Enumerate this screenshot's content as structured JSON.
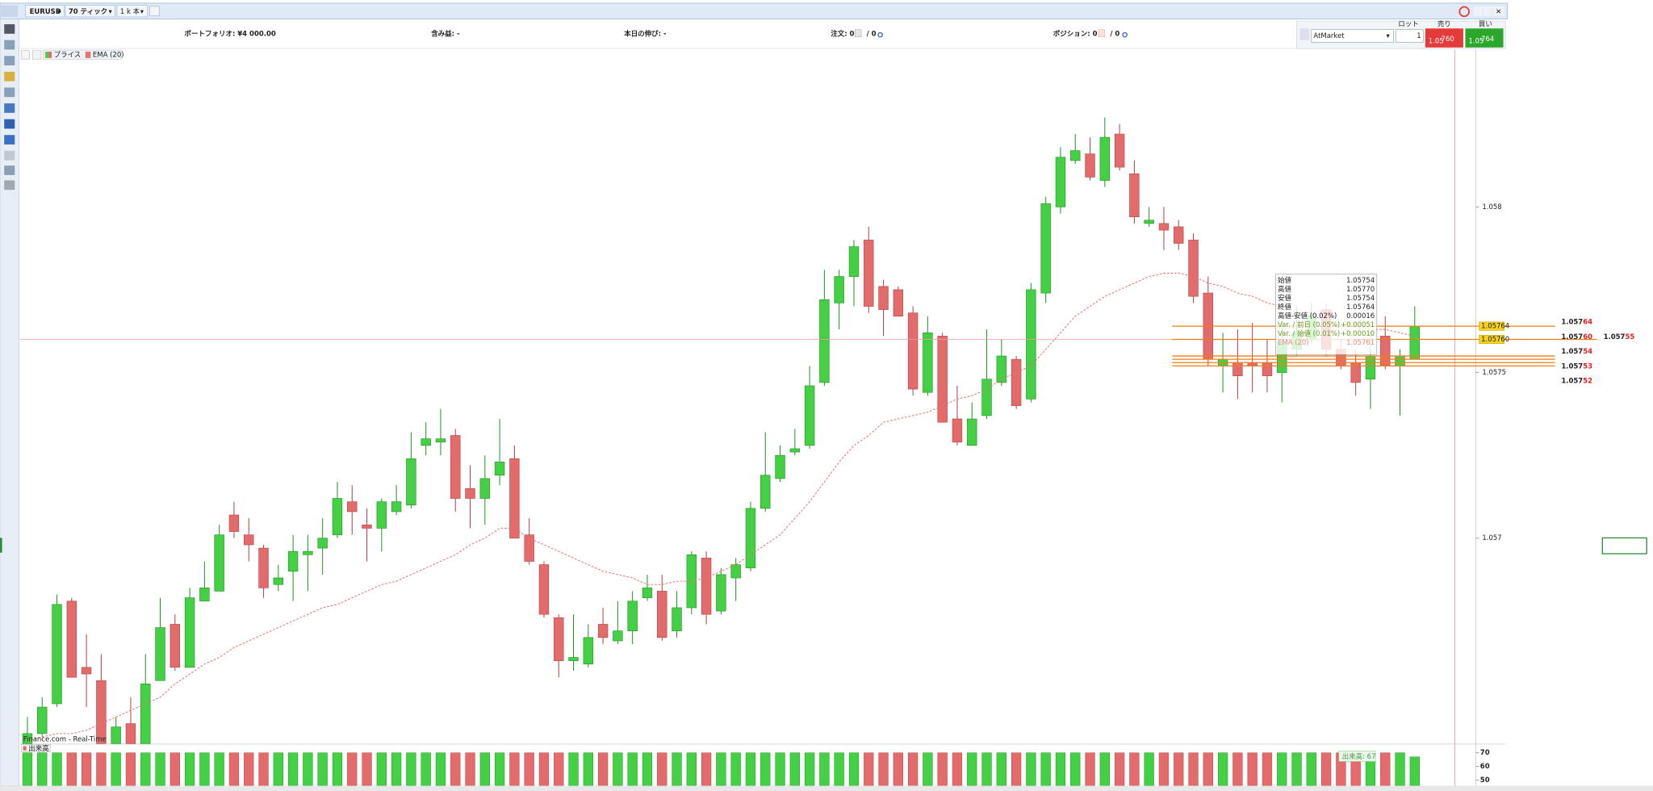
{
  "toolbar": {
    "symbol": "EURUSD",
    "interval": "70 ティック",
    "bars": "1 k 本"
  },
  "info": {
    "portfolio": "ポートフォリオ: ¥4 000.00",
    "pnl": "含み益: -",
    "daily": "本日の伸び: -",
    "orders": "注文: 0",
    "orders2": "/ 0",
    "positions": "ポジション: 0",
    "positions2": "/ 0"
  },
  "trade": {
    "order_type": "AtMarket",
    "lot_label": "ロット",
    "lot": "1",
    "sell_label": "売り",
    "buy_label": "買い",
    "sell_big": "1.05",
    "sell_pips": "760",
    "buy_big": "1.05",
    "buy_pips": "764"
  },
  "chart_data": {
    "type": "candlestick",
    "series": [
      {
        "name": "プライス",
        "up_color": "#44d044",
        "down_color": "#e36b6b",
        "open": [
          1.05638,
          1.05641,
          1.0565,
          1.05681,
          1.05661,
          1.05657,
          1.05638,
          1.05644,
          1.05638,
          1.05657,
          1.05674,
          1.05661,
          1.05681,
          1.05684,
          1.05707,
          1.05701,
          1.05697,
          1.05686,
          1.0569,
          1.05695,
          1.05697,
          1.05701,
          1.05711,
          1.05704,
          1.05703,
          1.05708,
          1.0571,
          1.05728,
          1.05729,
          1.05731,
          1.05715,
          1.05712,
          1.05719,
          1.05724,
          1.05701,
          1.05692,
          1.05676,
          1.05663,
          1.05662,
          1.05674,
          1.05669,
          1.05672,
          1.05682,
          1.05684,
          1.05672,
          1.05679,
          1.05694,
          1.05678,
          1.05688,
          1.05691,
          1.05709,
          1.05718,
          1.05726,
          1.05728,
          1.05747,
          1.05771,
          1.05779,
          1.0579,
          1.05776,
          1.05775,
          1.05768,
          1.05744,
          1.05761,
          1.05736,
          1.05728,
          1.05737,
          1.05747,
          1.05754,
          1.05742,
          1.05774,
          1.058,
          1.05814,
          1.05816,
          1.05808,
          1.05822,
          1.0581,
          1.05795,
          1.05795,
          1.05794,
          1.0579,
          1.05774,
          1.05752,
          1.05753,
          1.05753,
          1.05753,
          1.0575,
          1.05757,
          1.0576,
          1.05769,
          1.05757,
          1.05753,
          1.05748,
          1.05761,
          1.05752,
          1.05754
        ],
        "high": [
          1.05646,
          1.05652,
          1.05683,
          1.05682,
          1.05671,
          1.05665,
          1.05646,
          1.05652,
          1.05665,
          1.05682,
          1.05677,
          1.05685,
          1.05693,
          1.05704,
          1.05711,
          1.05706,
          1.05698,
          1.05692,
          1.05701,
          1.05701,
          1.05706,
          1.05717,
          1.05716,
          1.05709,
          1.05712,
          1.05716,
          1.05732,
          1.05735,
          1.05739,
          1.05733,
          1.05722,
          1.05725,
          1.05736,
          1.05728,
          1.05706,
          1.05693,
          1.05677,
          1.05677,
          1.05674,
          1.05679,
          1.05681,
          1.05684,
          1.05689,
          1.05689,
          1.05684,
          1.05696,
          1.05696,
          1.05691,
          1.05694,
          1.05711,
          1.05732,
          1.05728,
          1.05733,
          1.05752,
          1.05781,
          1.05781,
          1.0579,
          1.05794,
          1.05778,
          1.05776,
          1.0577,
          1.05767,
          1.05762,
          1.05746,
          1.05741,
          1.05763,
          1.0576,
          1.05755,
          1.05777,
          1.05803,
          1.05818,
          1.05822,
          1.05821,
          1.05827,
          1.05825,
          1.05814,
          1.058,
          1.058,
          1.05796,
          1.05792,
          1.05779,
          1.05762,
          1.05763,
          1.05765,
          1.0576,
          1.05767,
          1.0577,
          1.05771,
          1.05771,
          1.0576,
          1.05757,
          1.05762,
          1.05767,
          1.05757,
          1.0577
        ],
        "low": [
          1.05638,
          1.0564,
          1.05649,
          1.05658,
          1.05649,
          1.05638,
          1.05638,
          1.05638,
          1.05638,
          1.05657,
          1.0566,
          1.05661,
          1.05681,
          1.05684,
          1.057,
          1.05693,
          1.05682,
          1.05684,
          1.05681,
          1.05684,
          1.05689,
          1.057,
          1.05701,
          1.05693,
          1.05696,
          1.05707,
          1.05709,
          1.05725,
          1.05725,
          1.05708,
          1.05703,
          1.05704,
          1.05716,
          1.057,
          1.05692,
          1.05676,
          1.05658,
          1.0566,
          1.05661,
          1.05668,
          1.05668,
          1.05668,
          1.05681,
          1.05669,
          1.0567,
          1.05677,
          1.05674,
          1.05677,
          1.05681,
          1.0569,
          1.05708,
          1.05717,
          1.05725,
          1.05727,
          1.05746,
          1.05763,
          1.0577,
          1.05768,
          1.05761,
          1.05767,
          1.05743,
          1.05743,
          1.05735,
          1.05728,
          1.05728,
          1.05736,
          1.05746,
          1.05739,
          1.05741,
          1.05771,
          1.05798,
          1.05813,
          1.05808,
          1.05806,
          1.05811,
          1.05795,
          1.05794,
          1.05787,
          1.05787,
          1.05771,
          1.05752,
          1.05744,
          1.05742,
          1.05744,
          1.05744,
          1.05741,
          1.05755,
          1.05759,
          1.05755,
          1.05751,
          1.05743,
          1.05739,
          1.05751,
          1.05737,
          1.05754
        ],
        "close": [
          1.05641,
          1.05649,
          1.0568,
          1.05658,
          1.05659,
          1.05638,
          1.05643,
          1.05638,
          1.05656,
          1.05673,
          1.05661,
          1.05682,
          1.05685,
          1.05701,
          1.05702,
          1.05698,
          1.05685,
          1.05688,
          1.05696,
          1.05696,
          1.057,
          1.05712,
          1.05708,
          1.05703,
          1.05711,
          1.05711,
          1.05724,
          1.0573,
          1.0573,
          1.05712,
          1.05712,
          1.05718,
          1.05723,
          1.057,
          1.05693,
          1.05677,
          1.05663,
          1.05664,
          1.0567,
          1.0567,
          1.05672,
          1.05681,
          1.05685,
          1.0567,
          1.05679,
          1.05695,
          1.05677,
          1.05689,
          1.05692,
          1.05709,
          1.05719,
          1.05725,
          1.05727,
          1.05746,
          1.05772,
          1.05779,
          1.05788,
          1.0577,
          1.05769,
          1.05767,
          1.05745,
          1.05762,
          1.05735,
          1.05729,
          1.05736,
          1.05748,
          1.05755,
          1.0574,
          1.05775,
          1.05801,
          1.05815,
          1.05817,
          1.05809,
          1.05821,
          1.05812,
          1.05797,
          1.05796,
          1.05793,
          1.05789,
          1.05773,
          1.05754,
          1.05754,
          1.05749,
          1.05752,
          1.05749,
          1.05759,
          1.05762,
          1.05767,
          1.05757,
          1.05752,
          1.05747,
          1.05755,
          1.05752,
          1.05755,
          1.05764
        ]
      },
      {
        "name": "EMA (20)",
        "color": "#e57373",
        "values": [
          1.05639,
          1.0564,
          1.05641,
          1.05641,
          1.05642,
          1.05644,
          1.05646,
          1.05648,
          1.0565,
          1.05652,
          1.05656,
          1.05659,
          1.05662,
          1.05664,
          1.05667,
          1.05669,
          1.05671,
          1.05673,
          1.05675,
          1.05677,
          1.05679,
          1.0568,
          1.05682,
          1.05684,
          1.05686,
          1.05687,
          1.05689,
          1.05691,
          1.05693,
          1.05695,
          1.05698,
          1.057,
          1.05703,
          1.05703,
          1.057,
          1.05698,
          1.05696,
          1.05694,
          1.05692,
          1.0569,
          1.05689,
          1.05688,
          1.05686,
          1.05686,
          1.05687,
          1.05687,
          1.05688,
          1.0569,
          1.05692,
          1.05695,
          1.05698,
          1.05701,
          1.05706,
          1.05711,
          1.05717,
          1.05723,
          1.05728,
          1.05731,
          1.05735,
          1.05736,
          1.05737,
          1.05738,
          1.0574,
          1.05742,
          1.05743,
          1.05745,
          1.05748,
          1.0575,
          1.05752,
          1.05757,
          1.05762,
          1.05767,
          1.0577,
          1.05773,
          1.05775,
          1.05777,
          1.05779,
          1.0578,
          1.0578,
          1.05779,
          1.05777,
          1.05776,
          1.05774,
          1.05773,
          1.05771,
          1.0577,
          1.05769,
          1.05768,
          1.05767,
          1.05766,
          1.05764,
          1.05763,
          1.05763,
          1.05762,
          1.05761
        ]
      }
    ],
    "ylim": [
      1.05638,
      1.05844
    ],
    "yticks": [
      1.057,
      1.0575,
      1.058
    ],
    "volume": {
      "name": "出来高",
      "label": "出来高: 67",
      "values": [
        70,
        70,
        70,
        70,
        70,
        70,
        70,
        70,
        70,
        70,
        70,
        70,
        70,
        70,
        70,
        70,
        70,
        70,
        70,
        70,
        70,
        70,
        70,
        70,
        70,
        70,
        70,
        70,
        70,
        70,
        70,
        70,
        70,
        70,
        70,
        70,
        70,
        70,
        70,
        70,
        70,
        70,
        70,
        70,
        70,
        70,
        70,
        70,
        70,
        70,
        70,
        70,
        70,
        70,
        70,
        70,
        70,
        70,
        70,
        70,
        70,
        70,
        70,
        70,
        70,
        70,
        70,
        70,
        70,
        70,
        70,
        70,
        70,
        70,
        70,
        70,
        70,
        70,
        70,
        70,
        70,
        70,
        70,
        70,
        70,
        70,
        70,
        70,
        70,
        70,
        70,
        70,
        70,
        70,
        67
      ],
      "ylim": [
        46,
        76
      ],
      "yticks": [
        50,
        60,
        70
      ]
    },
    "levels": [
      {
        "value": 1.05764,
        "label": "1.05764",
        "big": "1.057",
        "pips": "64"
      },
      {
        "value": 1.0576,
        "label": "1.05760",
        "big": "1.057",
        "pips": "60"
      },
      {
        "value": 1.05755,
        "big": "1.057",
        "pips": "55"
      },
      {
        "value": 1.05754,
        "big": "1.057",
        "pips": "54"
      },
      {
        "value": 1.05753,
        "big": "1.057",
        "pips": "53"
      },
      {
        "value": 1.05752,
        "big": "1.057",
        "pips": "52"
      }
    ],
    "tooltip": [
      [
        "始値",
        "1.05754"
      ],
      [
        "高値",
        "1.05770"
      ],
      [
        "安値",
        "1.05754"
      ],
      [
        "終値",
        "1.05764"
      ],
      [
        "高値-安値 (0.02%)",
        "0.00016"
      ],
      [
        "Var. / 前日 (0.05%)",
        "+0.00051"
      ],
      [
        "Var. / 始値 (0.01%)",
        "+0.00010"
      ],
      [
        "EMA (20)",
        "1.05761"
      ]
    ],
    "source": "Finance.com - Real-Time"
  }
}
